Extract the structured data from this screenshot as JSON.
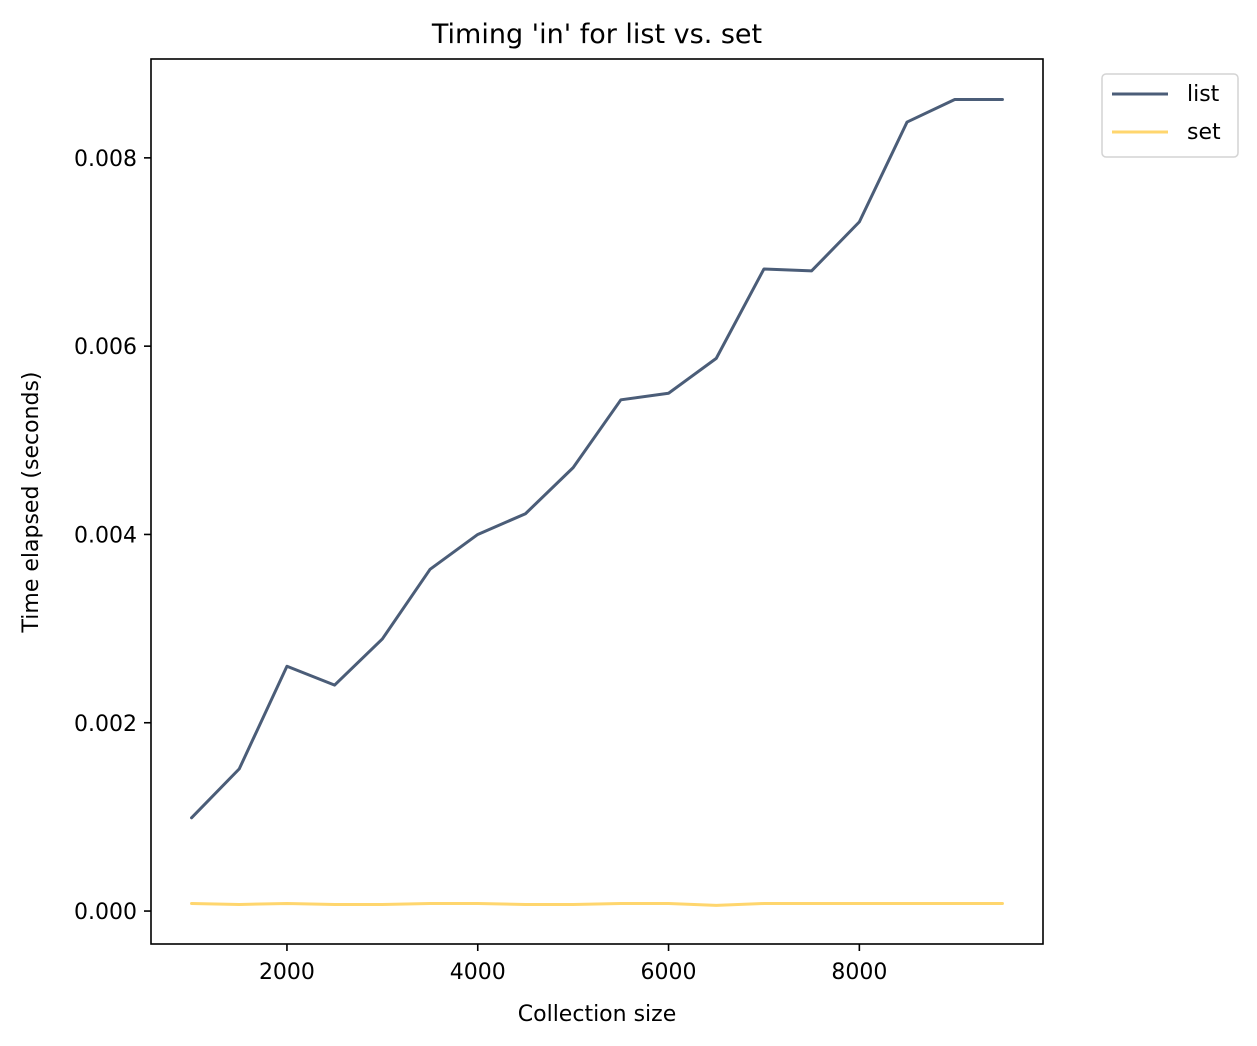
{
  "chart_data": {
    "type": "line",
    "title": "Timing 'in' for list vs. set",
    "xlabel": "Collection size",
    "ylabel": "Time elapsed (seconds)",
    "xlim": [
      575,
      9925
    ],
    "ylim": [
      -0.00035,
      0.00905
    ],
    "xticks": [
      2000,
      4000,
      6000,
      8000
    ],
    "xtick_labels": [
      "2000",
      "4000",
      "6000",
      "8000"
    ],
    "yticks": [
      0.0,
      0.002,
      0.004,
      0.006,
      0.008
    ],
    "ytick_labels": [
      "0.000",
      "0.002",
      "0.004",
      "0.006",
      "0.008"
    ],
    "grid": false,
    "legend_position": "outside-top-right",
    "x": [
      1000,
      1500,
      2000,
      2500,
      3000,
      3500,
      4000,
      4500,
      5000,
      5500,
      6000,
      6500,
      7000,
      7500,
      8000,
      8500,
      9000,
      9500
    ],
    "series": [
      {
        "name": "list",
        "color": "#4b5d78",
        "values": [
          0.00099,
          0.00151,
          0.0026,
          0.0024,
          0.00289,
          0.00363,
          0.004,
          0.00422,
          0.00471,
          0.00543,
          0.0055,
          0.00587,
          0.00682,
          0.0068,
          0.00732,
          0.00838,
          0.00862,
          0.00862
        ]
      },
      {
        "name": "set",
        "color": "#ffd66e",
        "values": [
          8e-05,
          7e-05,
          8e-05,
          7e-05,
          7e-05,
          8e-05,
          8e-05,
          7e-05,
          7e-05,
          8e-05,
          8e-05,
          6e-05,
          8e-05,
          8e-05,
          8e-05,
          8e-05,
          8e-05,
          8e-05
        ]
      }
    ]
  }
}
